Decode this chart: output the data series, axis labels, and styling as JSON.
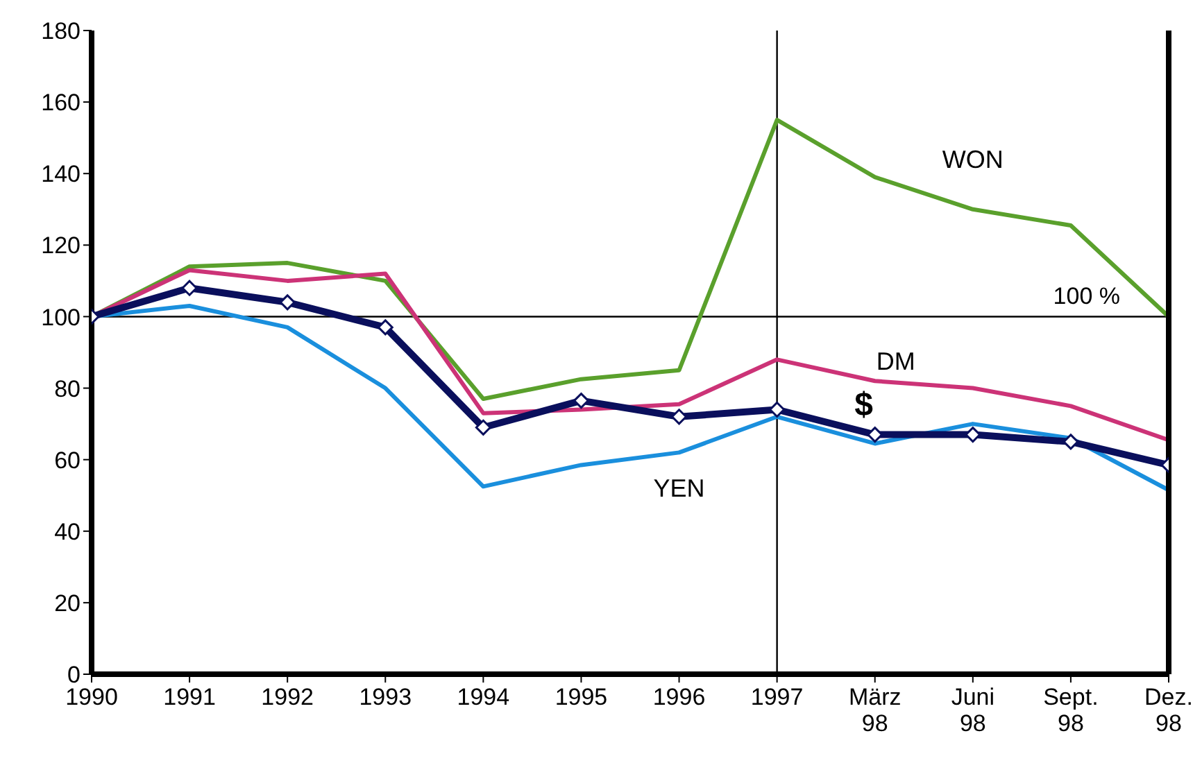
{
  "chart_data": {
    "type": "line",
    "categories": [
      "1990",
      "1991",
      "1992",
      "1993",
      "1994",
      "1995",
      "1996",
      "1997",
      "März 98",
      "Juni 98",
      "Sept. 98",
      "Dez. 98"
    ],
    "series": [
      {
        "name": "WON",
        "color": "#5aa02c",
        "marker": "none",
        "values": [
          100,
          114,
          115,
          110,
          77,
          82.5,
          85,
          155,
          139,
          130,
          125.5,
          100
        ]
      },
      {
        "name": "DM",
        "color": "#cc3377",
        "marker": "none",
        "values": [
          100,
          113,
          110,
          112,
          73,
          74,
          75.5,
          88,
          82,
          80,
          75,
          65.5
        ]
      },
      {
        "name": "YEN",
        "color": "#1a8fdd",
        "marker": "none",
        "values": [
          100,
          103,
          97,
          80,
          52.5,
          58.5,
          62,
          72,
          64.5,
          70,
          66,
          51.5
        ]
      },
      {
        "name": "$",
        "color": "#0a0f5c",
        "marker": "diamond",
        "values": [
          100,
          108,
          104,
          97,
          69,
          76.5,
          72,
          74,
          67,
          67,
          65,
          58.5
        ]
      }
    ],
    "ylim": [
      0,
      180
    ],
    "yticks": [
      0,
      20,
      40,
      60,
      80,
      100,
      120,
      140,
      160,
      180
    ],
    "ref_lines": [
      {
        "axis": "y",
        "value": 100,
        "label": "100 %"
      },
      {
        "axis": "x",
        "value": "1997",
        "label": null
      }
    ]
  }
}
